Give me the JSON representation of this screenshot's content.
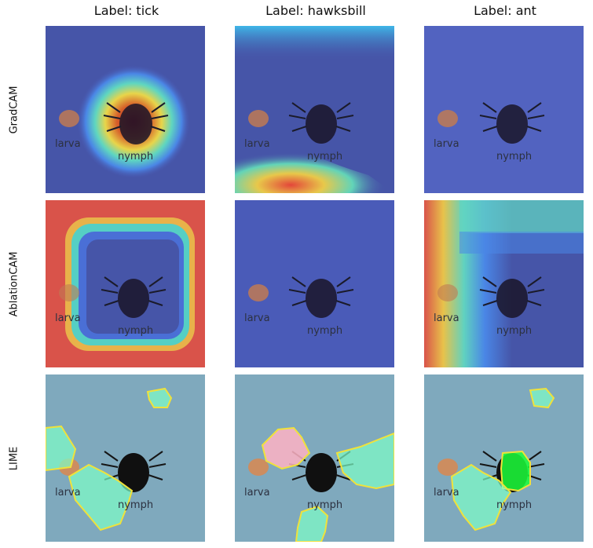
{
  "columns": [
    "Label: tick",
    "Label: hawksbill",
    "Label: ant"
  ],
  "rows": [
    "GradCAM",
    "AblationCAM",
    "LIME"
  ],
  "image_text": {
    "larva": "larva",
    "nymph": "nymph"
  }
}
